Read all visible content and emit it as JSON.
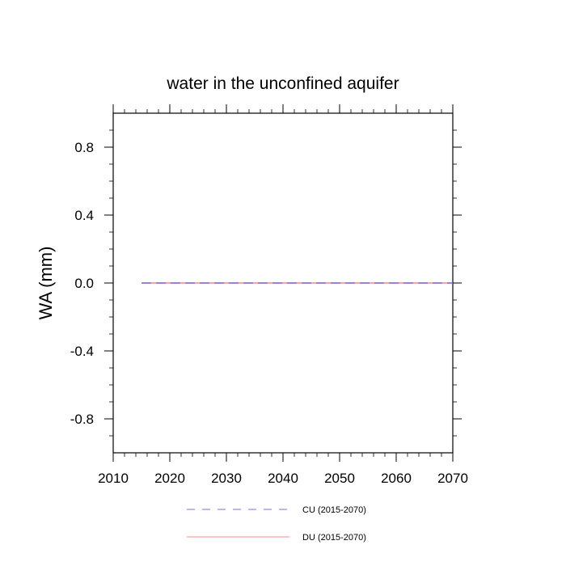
{
  "chart_data": {
    "type": "line",
    "title": "water in the unconfined aquifer",
    "xlabel": "",
    "ylabel": "WA  (mm)",
    "xlim": [
      2010,
      2070
    ],
    "ylim": [
      -1.0,
      1.0
    ],
    "x_ticks": [
      2010,
      2020,
      2030,
      2040,
      2050,
      2060,
      2070
    ],
    "x_tick_labels": [
      "2010",
      "2020",
      "2030",
      "2040",
      "2050",
      "2060",
      "2070"
    ],
    "y_ticks": [
      0.8,
      0.4,
      0.0,
      -0.4,
      -0.8
    ],
    "y_tick_labels": [
      "0.8",
      "0.4",
      "0.0",
      "-0.4",
      "-0.8"
    ],
    "grid": false,
    "legend_position": "bottom",
    "series": [
      {
        "name": "CU (2015-2070)",
        "color": "#7b6fd6",
        "dash": "dashed",
        "x": [
          2015,
          2070
        ],
        "y": [
          0.0,
          0.0
        ]
      },
      {
        "name": "DU (2015-2070)",
        "color": "#f08a8a",
        "dash": "solid",
        "x": [
          2015,
          2070
        ],
        "y": [
          0.0,
          0.0
        ]
      }
    ]
  }
}
